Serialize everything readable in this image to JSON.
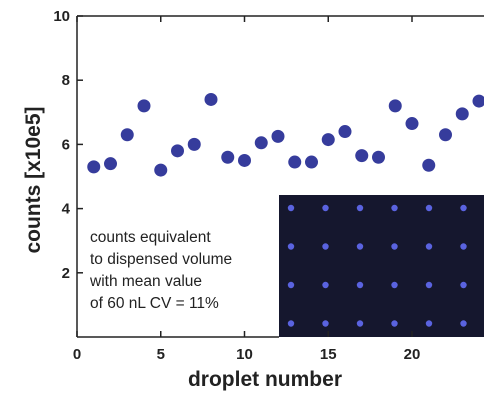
{
  "chart_data": {
    "type": "scatter",
    "xlabel": "droplet number",
    "ylabel": "counts [x10e5]",
    "annotation": [
      "counts  equivalent",
      "to dispensed volume",
      "with  mean  value",
      "of 60 nL  CV = 11%"
    ],
    "x": [
      1,
      2,
      3,
      4,
      5,
      6,
      7,
      8,
      9,
      10,
      11,
      12,
      13,
      14,
      15,
      16,
      17,
      18,
      19,
      20,
      21,
      22,
      23,
      24
    ],
    "series": [
      {
        "color": "#363c9c",
        "values": [
          5.3,
          5.4,
          6.3,
          7.2,
          5.2,
          5.8,
          6.0,
          7.4,
          5.6,
          5.5,
          6.05,
          6.25,
          5.45,
          5.45,
          6.15,
          6.4,
          5.65,
          5.6,
          7.2,
          6.65,
          5.35,
          6.3,
          6.95,
          7.35
        ]
      }
    ],
    "xlim": [
      0,
      24.3
    ],
    "ylim": [
      0,
      10
    ],
    "xticks": [
      0,
      5,
      10,
      15,
      20
    ],
    "yticks": [
      2,
      4,
      6,
      8,
      10
    ]
  }
}
